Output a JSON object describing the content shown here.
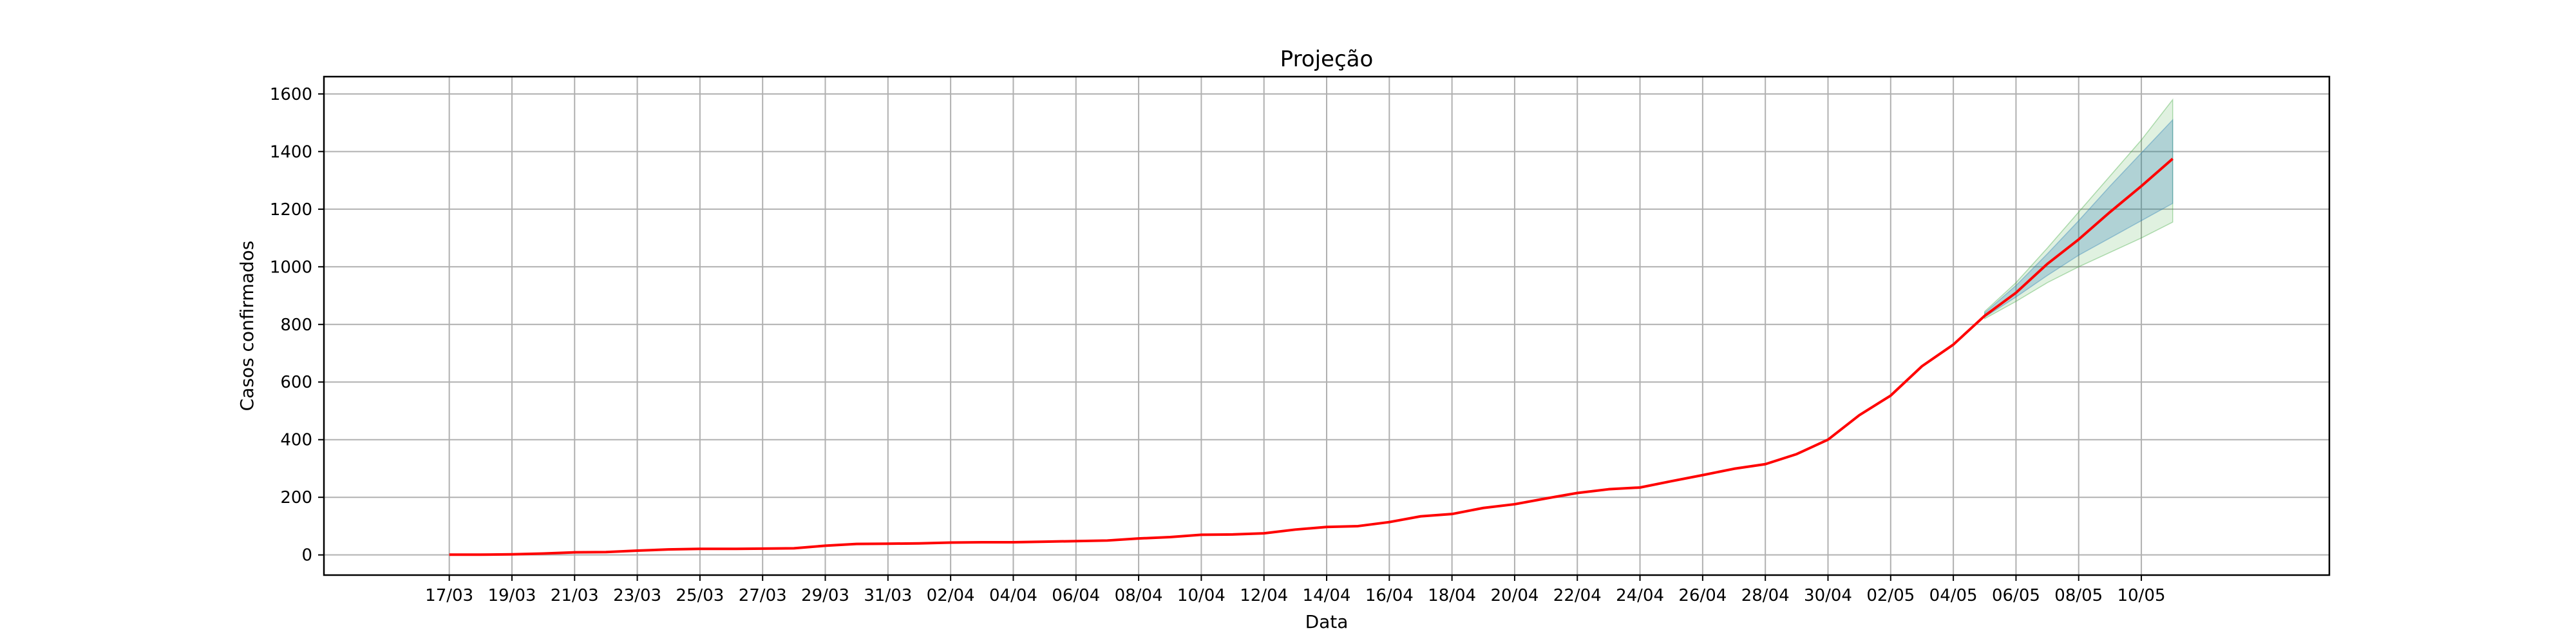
{
  "chart_data": {
    "type": "line",
    "title": "Projeção",
    "xlabel": "Data",
    "ylabel": "Casos confirmados",
    "grid": true,
    "legend": "none",
    "xlim": [
      "2020-03-13",
      "2020-05-16"
    ],
    "ylim": [
      -70,
      1660
    ],
    "x_ticks": [
      "17/03",
      "19/03",
      "21/03",
      "23/03",
      "25/03",
      "27/03",
      "29/03",
      "31/03",
      "02/04",
      "04/04",
      "06/04",
      "08/04",
      "10/04",
      "12/04",
      "14/04",
      "16/04",
      "18/04",
      "20/04",
      "22/04",
      "24/04",
      "26/04",
      "28/04",
      "30/04",
      "02/05",
      "04/05",
      "06/05",
      "08/05",
      "10/05"
    ],
    "y_ticks": [
      0,
      200,
      400,
      600,
      800,
      1000,
      1200,
      1400,
      1600
    ],
    "series": [
      {
        "color": "#ff0000",
        "x": [
          "2020-03-17",
          "2020-03-18",
          "2020-03-19",
          "2020-03-20",
          "2020-03-21",
          "2020-03-22",
          "2020-03-23",
          "2020-03-24",
          "2020-03-25",
          "2020-03-26",
          "2020-03-27",
          "2020-03-28",
          "2020-03-29",
          "2020-03-30",
          "2020-03-31",
          "2020-04-01",
          "2020-04-02",
          "2020-04-03",
          "2020-04-04",
          "2020-04-05",
          "2020-04-06",
          "2020-04-07",
          "2020-04-08",
          "2020-04-09",
          "2020-04-10",
          "2020-04-11",
          "2020-04-12",
          "2020-04-13",
          "2020-04-14",
          "2020-04-15",
          "2020-04-16",
          "2020-04-17",
          "2020-04-18",
          "2020-04-19",
          "2020-04-20",
          "2020-04-21",
          "2020-04-22",
          "2020-04-23",
          "2020-04-24",
          "2020-04-25",
          "2020-04-26",
          "2020-04-27",
          "2020-04-28",
          "2020-04-29",
          "2020-04-30",
          "2020-05-01",
          "2020-05-02",
          "2020-05-03",
          "2020-05-04",
          "2020-05-05",
          "2020-05-06",
          "2020-05-07",
          "2020-05-08",
          "2020-05-09",
          "2020-05-10",
          "2020-05-11"
        ],
        "values": [
          1,
          1,
          2,
          5,
          9,
          10,
          15,
          19,
          21,
          21,
          22,
          23,
          32,
          38,
          39,
          40,
          43,
          44,
          44,
          46,
          48,
          50,
          57,
          62,
          70,
          71,
          75,
          88,
          97,
          100,
          114,
          134,
          142,
          163,
          176,
          196,
          215,
          228,
          234,
          256,
          277,
          299,
          315,
          350,
          400,
          485,
          553,
          655,
          730,
          830,
          910,
          1010,
          1095,
          1190,
          1280,
          1375
        ]
      }
    ],
    "bands": [
      {
        "color": "#2ca02c",
        "opacity": 0.15,
        "x": [
          "2020-05-05",
          "2020-05-06",
          "2020-05-07",
          "2020-05-08",
          "2020-05-09",
          "2020-05-10",
          "2020-05-11"
        ],
        "lower": [
          820,
          880,
          945,
          1000,
          1050,
          1100,
          1155
        ],
        "upper": [
          845,
          945,
          1065,
          1190,
          1315,
          1440,
          1580
        ]
      },
      {
        "color": "#1f77b4",
        "opacity": 0.25,
        "x": [
          "2020-05-05",
          "2020-05-06",
          "2020-05-07",
          "2020-05-08",
          "2020-05-09",
          "2020-05-10",
          "2020-05-11"
        ],
        "lower": [
          825,
          895,
          970,
          1040,
          1100,
          1160,
          1220
        ],
        "upper": [
          840,
          935,
          1045,
          1160,
          1280,
          1395,
          1510
        ]
      }
    ]
  }
}
